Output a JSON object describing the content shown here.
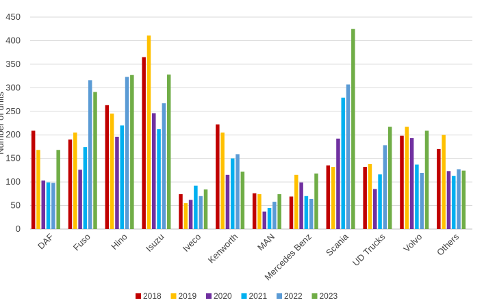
{
  "chart_data": {
    "type": "bar",
    "ylabel": "Number of units",
    "ylim": [
      0,
      450
    ],
    "yticks": [
      0,
      50,
      100,
      150,
      200,
      250,
      300,
      350,
      400,
      450
    ],
    "grid": true,
    "legend_position": "bottom",
    "categories": [
      "DAF",
      "Fuso",
      "Hino",
      "Isuzu",
      "Iveco",
      "Kenworth",
      "MAN",
      "Mercedes Benz",
      "Scania",
      "UD Trucks",
      "Volvo",
      "Others"
    ],
    "series": [
      {
        "name": "2018",
        "color": "#c00000",
        "values": [
          209,
          190,
          263,
          365,
          74,
          222,
          76,
          69,
          135,
          132,
          198,
          170
        ]
      },
      {
        "name": "2019",
        "color": "#ffc000",
        "values": [
          168,
          205,
          245,
          411,
          55,
          205,
          74,
          115,
          132,
          138,
          217,
          200
        ]
      },
      {
        "name": "2020",
        "color": "#7030a0",
        "values": [
          103,
          126,
          196,
          246,
          62,
          115,
          37,
          99,
          192,
          85,
          193,
          123
        ]
      },
      {
        "name": "2021",
        "color": "#00b0f0",
        "values": [
          99,
          174,
          220,
          212,
          92,
          150,
          45,
          70,
          279,
          116,
          137,
          113
        ]
      },
      {
        "name": "2022",
        "color": "#5b9bd5",
        "values": [
          98,
          316,
          323,
          267,
          70,
          159,
          58,
          64,
          307,
          178,
          119,
          127
        ]
      },
      {
        "name": "2023",
        "color": "#70ad47",
        "values": [
          168,
          291,
          327,
          328,
          84,
          122,
          74,
          118,
          425,
          217,
          209,
          124
        ]
      }
    ]
  }
}
